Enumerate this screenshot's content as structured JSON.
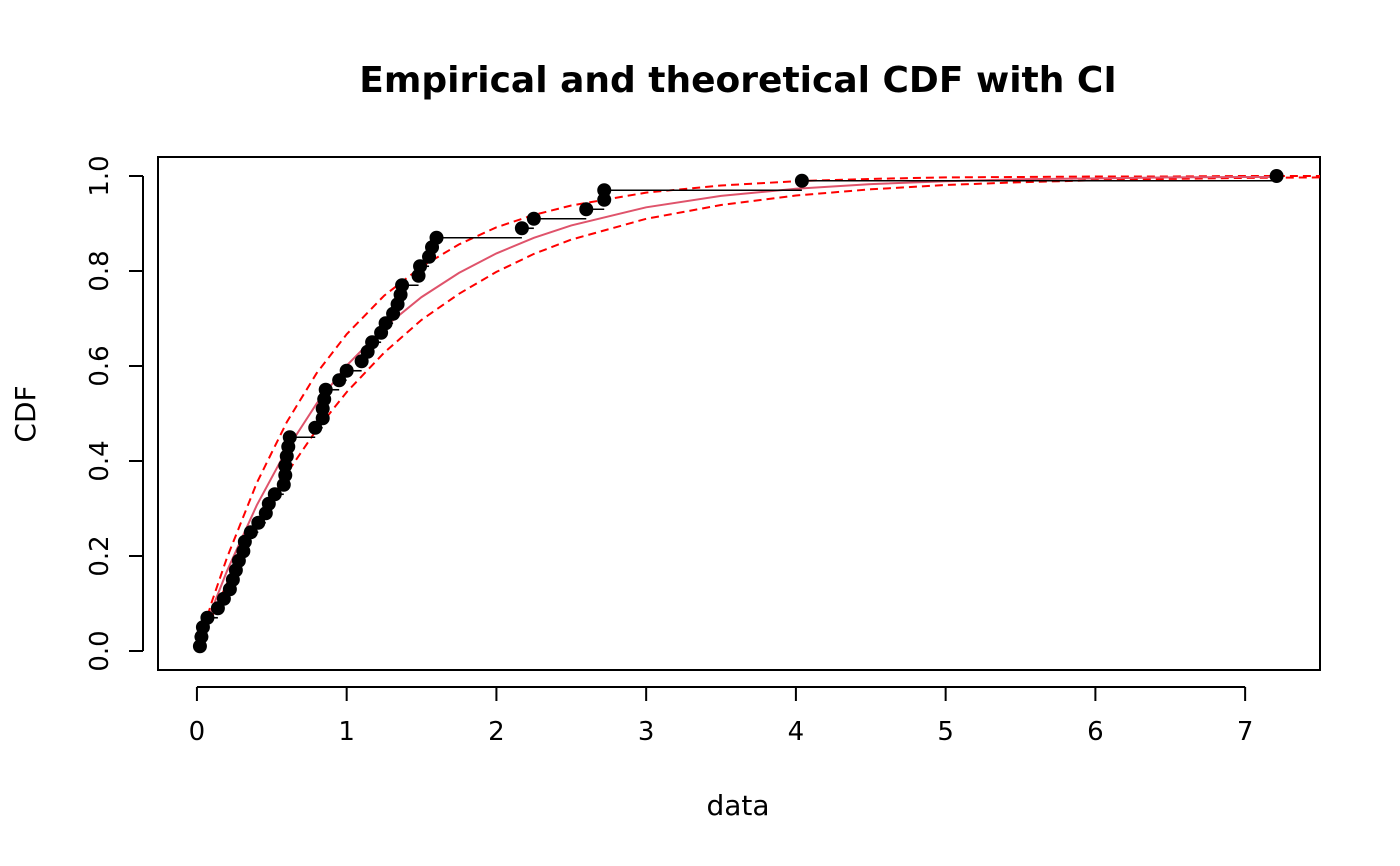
{
  "chart_data": {
    "type": "scatter",
    "title": "Empirical and theoretical CDF with CI",
    "xlabel": "data",
    "ylabel": "CDF",
    "xlim": [
      -0.26,
      7.5
    ],
    "ylim": [
      -0.04,
      1.04
    ],
    "x_ticks": [
      "0",
      "1",
      "2",
      "3",
      "4",
      "5",
      "6",
      "7"
    ],
    "y_ticks": [
      "0.0",
      "0.2",
      "0.4",
      "0.6",
      "0.8",
      "1.0"
    ],
    "grid": false,
    "colors": {
      "points": "#000000",
      "steps": "#000000",
      "theoretical": "#df536b",
      "ci": "#ff0000"
    },
    "empirical": {
      "x": [
        0.02,
        0.03,
        0.04,
        0.07,
        0.14,
        0.18,
        0.22,
        0.24,
        0.26,
        0.28,
        0.31,
        0.32,
        0.36,
        0.41,
        0.46,
        0.48,
        0.52,
        0.58,
        0.59,
        0.59,
        0.6,
        0.61,
        0.62,
        0.79,
        0.84,
        0.84,
        0.85,
        0.86,
        0.95,
        1.0,
        1.1,
        1.14,
        1.17,
        1.23,
        1.26,
        1.31,
        1.34,
        1.36,
        1.37,
        1.48,
        1.49,
        1.55,
        1.57,
        1.6,
        2.17,
        2.25,
        2.6,
        2.72,
        2.72,
        4.04,
        7.21
      ],
      "y": [
        0.01,
        0.03,
        0.05,
        0.07,
        0.09,
        0.11,
        0.13,
        0.15,
        0.17,
        0.19,
        0.21,
        0.23,
        0.25,
        0.27,
        0.29,
        0.31,
        0.33,
        0.35,
        0.37,
        0.39,
        0.41,
        0.43,
        0.45,
        0.47,
        0.49,
        0.51,
        0.53,
        0.55,
        0.57,
        0.59,
        0.61,
        0.63,
        0.65,
        0.67,
        0.69,
        0.71,
        0.73,
        0.75,
        0.77,
        0.79,
        0.81,
        0.83,
        0.85,
        0.87,
        0.89,
        0.91,
        0.93,
        0.95,
        0.97,
        0.99,
        1.0
      ]
    },
    "theoretical": {
      "x": [
        0.02,
        0.1,
        0.2,
        0.4,
        0.6,
        0.8,
        1.0,
        1.25,
        1.5,
        1.75,
        2.0,
        2.25,
        2.5,
        3.0,
        3.5,
        4.0,
        4.5,
        5.0,
        5.5,
        6.0,
        6.5,
        7.0,
        7.21
      ],
      "y": [
        0.018,
        0.088,
        0.168,
        0.307,
        0.424,
        0.521,
        0.601,
        0.681,
        0.745,
        0.796,
        0.837,
        0.87,
        0.896,
        0.934,
        0.958,
        0.973,
        0.983,
        0.989,
        0.993,
        0.995,
        0.997,
        0.998,
        0.998
      ]
    },
    "ci_upper": {
      "x": [
        0.02,
        0.1,
        0.2,
        0.4,
        0.6,
        0.8,
        1.0,
        1.25,
        1.5,
        1.75,
        2.0,
        2.25,
        2.5,
        3.0,
        3.5,
        4.0,
        4.5,
        5.0,
        5.5,
        6.0,
        6.5,
        7.0,
        7.5
      ],
      "y": [
        0.022,
        0.104,
        0.196,
        0.354,
        0.482,
        0.585,
        0.667,
        0.748,
        0.809,
        0.856,
        0.892,
        0.918,
        0.938,
        0.965,
        0.98,
        0.989,
        0.994,
        0.997,
        0.998,
        0.999,
        0.999,
        1.0,
        1.0
      ]
    },
    "ci_lower": {
      "x": [
        0.02,
        0.1,
        0.2,
        0.4,
        0.6,
        0.8,
        1.0,
        1.25,
        1.5,
        1.75,
        2.0,
        2.25,
        2.5,
        3.0,
        3.5,
        4.0,
        4.5,
        5.0,
        5.5,
        6.0,
        6.5,
        7.0,
        7.5
      ],
      "y": [
        0.015,
        0.072,
        0.142,
        0.266,
        0.374,
        0.466,
        0.545,
        0.628,
        0.697,
        0.752,
        0.798,
        0.836,
        0.866,
        0.91,
        0.939,
        0.959,
        0.972,
        0.981,
        0.987,
        0.991,
        0.994,
        0.996,
        0.997
      ]
    }
  }
}
